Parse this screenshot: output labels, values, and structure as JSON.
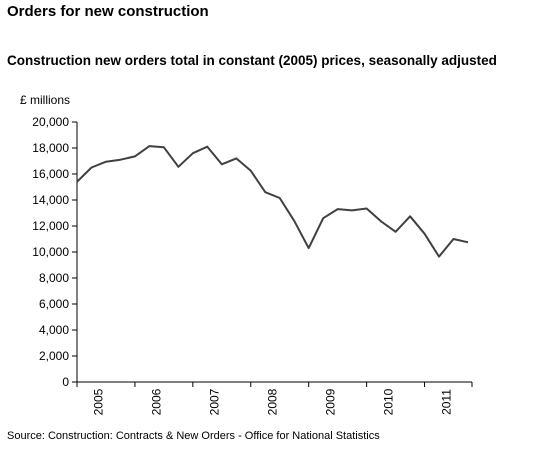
{
  "title": "Orders for new construction",
  "chart_data": {
    "type": "line",
    "title": "Construction new orders total in constant (2005) prices, seasonally adjusted",
    "ylabel": "£ millions",
    "xlabel": "",
    "ylim": [
      0,
      20000
    ],
    "y_ticks": [
      "0",
      "2,000",
      "4,000",
      "6,000",
      "8,000",
      "10,000",
      "12,000",
      "14,000",
      "16,000",
      "18,000",
      "20,000"
    ],
    "x_tick_labels": [
      "2005",
      "2006",
      "2007",
      "2008",
      "2009",
      "2010",
      "2011"
    ],
    "grid": false,
    "x": [
      "2005 Q1",
      "2005 Q2",
      "2005 Q3",
      "2005 Q4",
      "2006 Q1",
      "2006 Q2",
      "2006 Q3",
      "2006 Q4",
      "2007 Q1",
      "2007 Q2",
      "2007 Q3",
      "2007 Q4",
      "2008 Q1",
      "2008 Q2",
      "2008 Q3",
      "2008 Q4",
      "2009 Q1",
      "2009 Q2",
      "2009 Q3",
      "2009 Q4",
      "2010 Q1",
      "2010 Q2",
      "2010 Q3",
      "2010 Q4",
      "2011 Q1",
      "2011 Q2",
      "2011 Q3",
      "2011 Q4"
    ],
    "series": [
      {
        "values": [
          15400,
          16500,
          16950,
          17100,
          17350,
          18150,
          18050,
          16550,
          17600,
          18100,
          16750,
          17200,
          16250,
          14600,
          14150,
          12400,
          10300,
          12600,
          13300,
          13200,
          13350,
          12350,
          11550,
          12750,
          11400,
          9650,
          11000,
          10750
        ],
        "color": "#404040"
      }
    ]
  },
  "source": "Source: Construction: Contracts & New Orders - Office for National Statistics"
}
